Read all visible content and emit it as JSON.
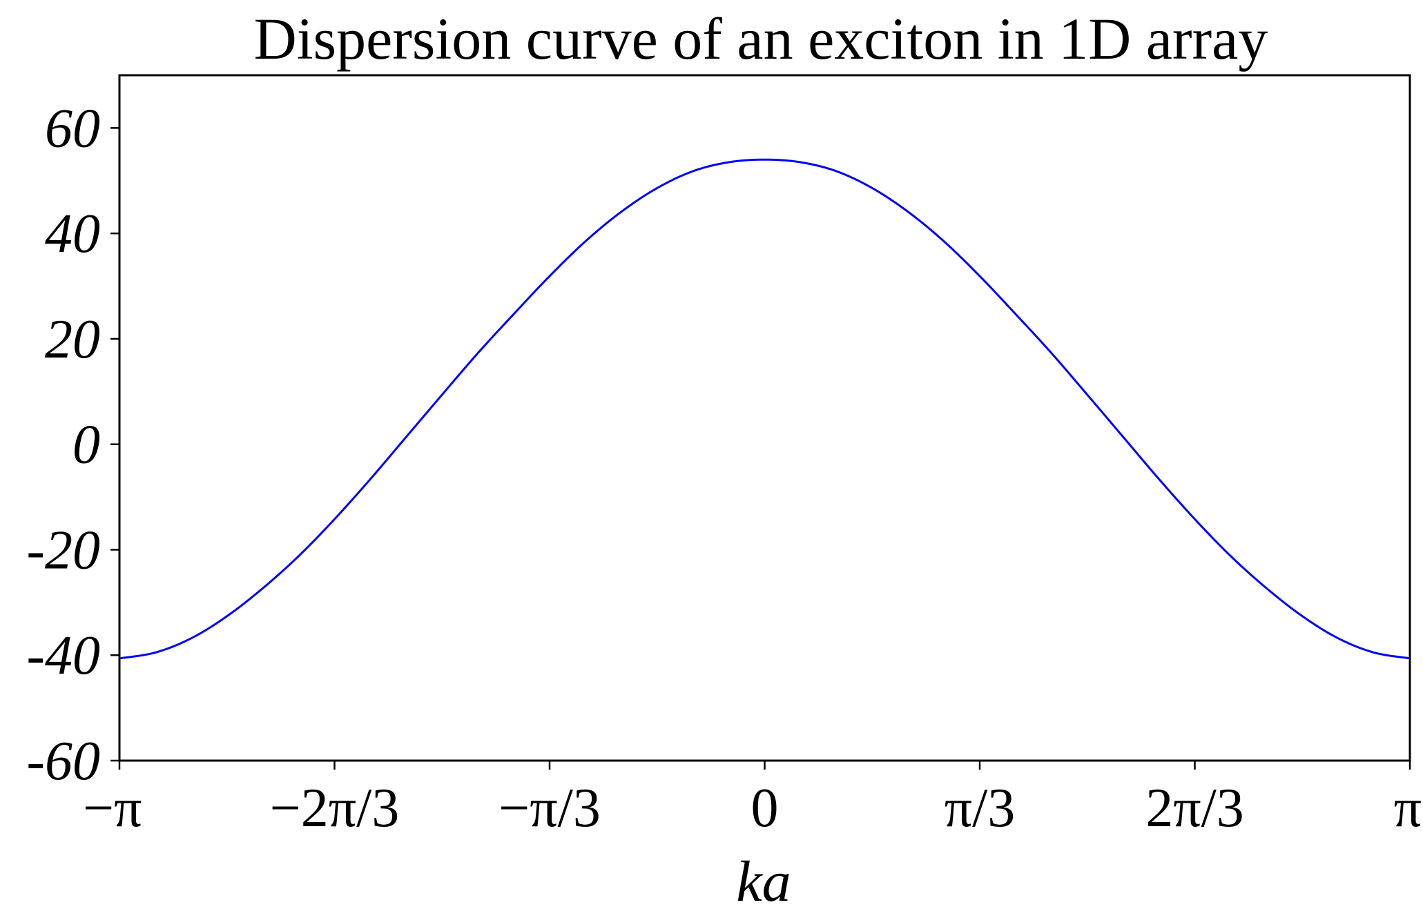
{
  "chart_data": {
    "type": "line",
    "title": "Dispersion curve of an exciton in 1D array",
    "xlabel": "ka",
    "ylabel": "",
    "xlim": [
      -3.14159,
      3.14159
    ],
    "ylim": [
      -60,
      70
    ],
    "grid": false,
    "legend": "none",
    "x_ticks": [
      {
        "value": -3.14159,
        "label": "−π"
      },
      {
        "value": -2.0944,
        "label": "−2π/3"
      },
      {
        "value": -1.0472,
        "label": "−π/3"
      },
      {
        "value": 0,
        "label": "0"
      },
      {
        "value": 1.0472,
        "label": "π/3"
      },
      {
        "value": 2.0944,
        "label": "2π/3"
      },
      {
        "value": 3.14159,
        "label": "π"
      }
    ],
    "y_ticks": [
      {
        "value": 60,
        "label": "60"
      },
      {
        "value": 40,
        "label": "40"
      },
      {
        "value": 20,
        "label": "20"
      },
      {
        "value": 0,
        "label": "0"
      },
      {
        "value": -20,
        "label": "-20"
      },
      {
        "value": -40,
        "label": "-40"
      },
      {
        "value": -60,
        "label": "-60"
      }
    ],
    "series": [
      {
        "color": "#0000ff",
        "x": [
          -3.1416,
          -2.9671,
          -2.7925,
          -2.618,
          -2.4435,
          -2.2689,
          -2.0944,
          -1.9199,
          -1.7453,
          -1.5708,
          -1.3963,
          -1.2217,
          -1.0472,
          -0.8727,
          -0.6981,
          -0.5236,
          -0.3491,
          -0.1745,
          0.0,
          0.1745,
          0.3491,
          0.5236,
          0.6981,
          0.8727,
          1.0472,
          1.2217,
          1.3963,
          1.5708,
          1.7453,
          1.9199,
          2.0944,
          2.2689,
          2.4435,
          2.618,
          2.7925,
          2.9671,
          3.1416
        ],
        "y": [
          -40.6,
          -39.5,
          -36.8,
          -32.6,
          -27.3,
          -21.2,
          -14.2,
          -6.6,
          1.4,
          9.4,
          17.3,
          24.7,
          31.9,
          38.5,
          44.1,
          48.6,
          51.8,
          53.5,
          54.0,
          53.5,
          51.8,
          48.6,
          44.1,
          38.5,
          31.9,
          24.7,
          17.3,
          9.4,
          1.4,
          -6.6,
          -14.2,
          -21.2,
          -27.3,
          -32.6,
          -36.8,
          -39.5,
          -40.6
        ]
      }
    ]
  }
}
